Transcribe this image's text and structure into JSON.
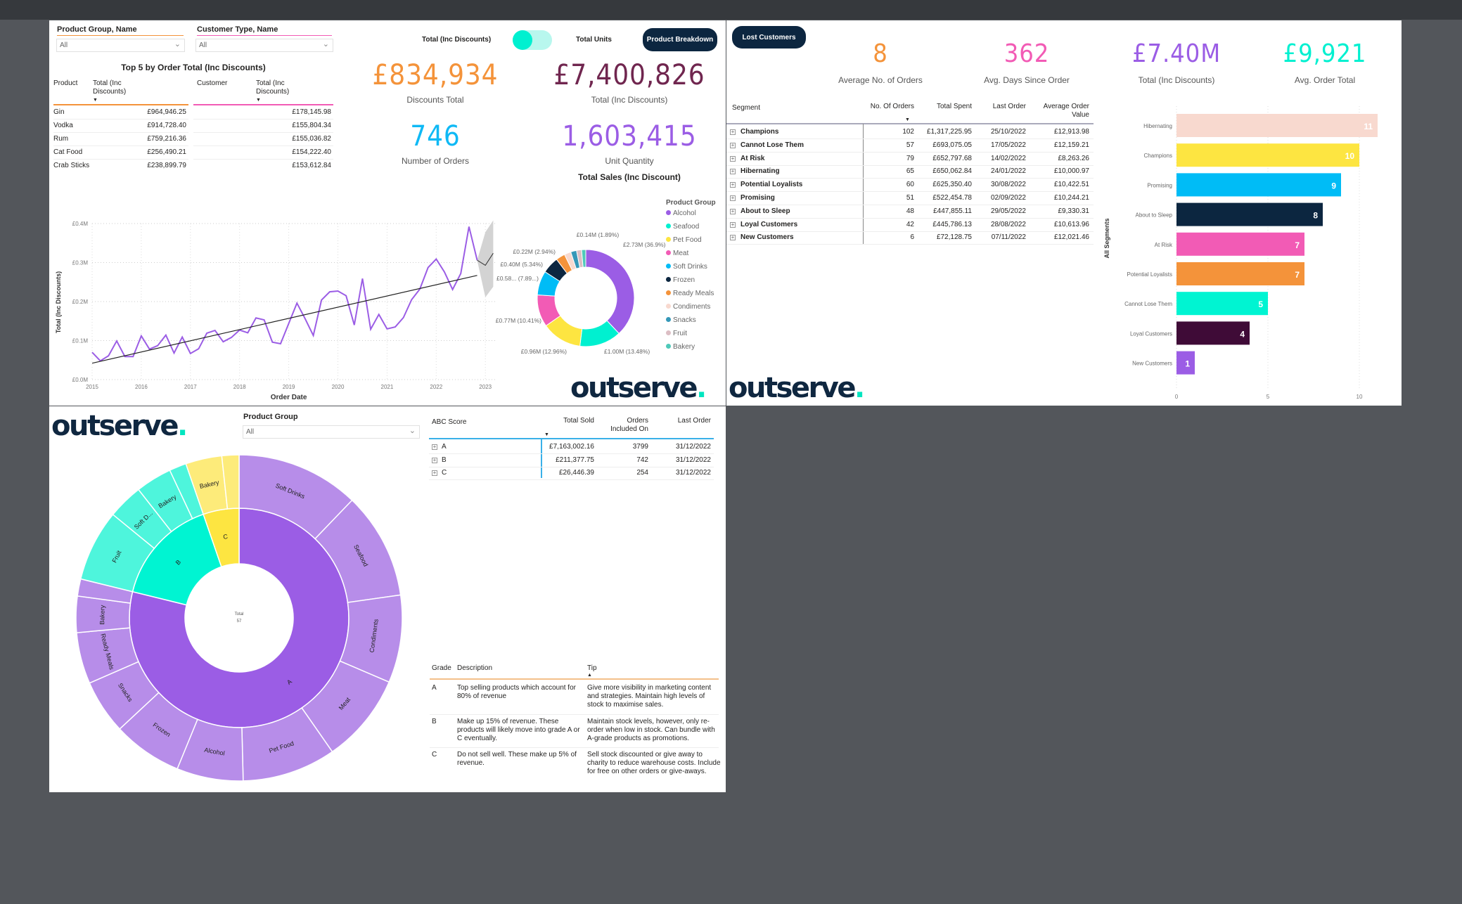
{
  "colors": {
    "orange": "#f4933a",
    "plum": "#70264f",
    "blue": "#0fb9f5",
    "purple": "#9b5de5",
    "pink": "#f25bb5",
    "teal": "#00f0d0",
    "navy": "#0c2640"
  },
  "logo_text": "outserve",
  "sales_panel": {
    "slicers": [
      {
        "label": "Product Group, Name",
        "value": "All"
      },
      {
        "label": "Customer Type, Name",
        "value": "All"
      }
    ],
    "top5": {
      "title": "Top 5 by Order Total (Inc Discounts)",
      "product_headers": [
        "Product",
        "Total (Inc Discounts)"
      ],
      "customer_headers": [
        "Customer",
        "Total (Inc Discounts)"
      ],
      "products": [
        [
          "Gin",
          "£964,946.25"
        ],
        [
          "Vodka",
          "£914,728.40"
        ],
        [
          "Rum",
          "£759,216.36"
        ],
        [
          "Cat Food",
          "£256,490.21"
        ],
        [
          "Crab Sticks",
          "£238,899.79"
        ]
      ],
      "customer_totals": [
        "£178,145.98",
        "£155,804.34",
        "£155,036.82",
        "£154,222.40",
        "£153,612.84"
      ]
    },
    "toggle": {
      "left_label": "Total (Inc Discounts)",
      "right_label": "Total Units",
      "state": "left"
    },
    "product_breakdown_button": "Product Breakdown",
    "kpis": [
      {
        "value": "£834,934",
        "label": "Discounts Total",
        "color": "#f4933a"
      },
      {
        "value": "£7,400,826",
        "label": "Total (Inc Discounts)",
        "color": "#70264f"
      },
      {
        "value": "746",
        "label": "Number of Orders",
        "color": "#0fb9f5"
      },
      {
        "value": "1,603,415",
        "label": "Unit Quantity",
        "color": "#9b5de5"
      }
    ],
    "donut_title": "Total Sales (Inc Discount)"
  },
  "customer_panel": {
    "lost_customers_button": "Lost Customers",
    "kpis": [
      {
        "value": "8",
        "label": "Average No. of Orders",
        "color": "#f4933a"
      },
      {
        "value": "362",
        "label": "Avg. Days Since Order",
        "color": "#f25bb5"
      },
      {
        "value": "£7.40M",
        "label": "Total (Inc Discounts)",
        "color": "#9b5de5"
      },
      {
        "value": "£9,921",
        "label": "Avg. Order Total",
        "color": "#00f0d0"
      }
    ],
    "segment_table": {
      "headers": [
        "Segment",
        "No. Of Orders",
        "Total Spent",
        "Last Order",
        "Average Order Value"
      ],
      "rows": [
        [
          "Champions",
          "102",
          "£1,317,225.95",
          "25/10/2022",
          "£12,913.98"
        ],
        [
          "Cannot Lose Them",
          "57",
          "£693,075.05",
          "17/05/2022",
          "£12,159.21"
        ],
        [
          "At Risk",
          "79",
          "£652,797.68",
          "14/02/2022",
          "£8,263.26"
        ],
        [
          "Hibernating",
          "65",
          "£650,062.84",
          "24/01/2022",
          "£10,000.97"
        ],
        [
          "Potential Loyalists",
          "60",
          "£625,350.40",
          "30/08/2022",
          "£10,422.51"
        ],
        [
          "Promising",
          "51",
          "£522,454.78",
          "02/09/2022",
          "£10,244.21"
        ],
        [
          "About to Sleep",
          "48",
          "£447,855.11",
          "29/05/2022",
          "£9,330.31"
        ],
        [
          "Loyal Customers",
          "42",
          "£445,786.13",
          "28/08/2022",
          "£10,613.96"
        ],
        [
          "New Customers",
          "6",
          "£72,128.75",
          "07/11/2022",
          "£12,021.46"
        ]
      ]
    }
  },
  "abc_panel": {
    "slicer": {
      "label": "Product Group",
      "value": "All"
    },
    "abc_table": {
      "headers": [
        "ABC Score",
        "Total Sold",
        "Orders Included On",
        "Last Order"
      ],
      "rows": [
        [
          "A",
          "£7,163,002.16",
          "3799",
          "31/12/2022"
        ],
        [
          "B",
          "£211,377.75",
          "742",
          "31/12/2022"
        ],
        [
          "C",
          "£26,446.39",
          "254",
          "31/12/2022"
        ]
      ]
    },
    "grade_table": {
      "headers": [
        "Grade",
        "Description",
        "Tip"
      ],
      "rows": [
        [
          "A",
          "Top selling products which account for 80% of revenue",
          "Give more visibility in marketing content and strategies. Maintain high levels of stock to maximise sales."
        ],
        [
          "B",
          "Make up 15% of revenue. These products will likely move into grade A or C eventually.",
          "Maintain stock levels, however, only re-order when low in stock. Can bundle with A-grade products as promotions."
        ],
        [
          "C",
          "Do not sell well. These make up 5% of revenue.",
          "Sell stock discounted or give away to charity to reduce warehouse costs. Include for free on other orders or give-aways."
        ]
      ]
    }
  },
  "chart_data": [
    {
      "type": "line",
      "xlabel": "Order Date",
      "ylabel": "Total (Inc Discounts)",
      "x_ticks": [
        "2015",
        "2016",
        "2017",
        "2018",
        "2019",
        "2020",
        "2021",
        "2022",
        "2023"
      ],
      "y_ticks": [
        "£0.0M",
        "£0.1M",
        "£0.2M",
        "£0.3M",
        "£0.4M"
      ],
      "ylim": [
        0,
        0.4
      ],
      "y_unit": "£M",
      "grid": true,
      "x_step": "bi-monthly from 2015",
      "values": [
        0.07,
        0.048,
        0.061,
        0.099,
        0.059,
        0.059,
        0.112,
        0.078,
        0.087,
        0.114,
        0.068,
        0.109,
        0.067,
        0.079,
        0.119,
        0.126,
        0.097,
        0.108,
        0.127,
        0.12,
        0.158,
        0.153,
        0.096,
        0.092,
        0.144,
        0.196,
        0.156,
        0.113,
        0.204,
        0.225,
        0.227,
        0.215,
        0.14,
        0.259,
        0.129,
        0.167,
        0.13,
        0.135,
        0.159,
        0.205,
        0.232,
        0.287,
        0.309,
        0.276,
        0.231,
        0.272,
        0.392,
        0.306
      ],
      "trend": {
        "start": 0.042,
        "end": 0.267
      },
      "forecast": {
        "values": [
          0.306,
          0.293,
          0.324
        ],
        "upper": [
          0.306,
          0.378,
          0.408
        ],
        "lower": [
          0.306,
          0.211,
          0.238
        ]
      },
      "line_color": "#9b5de5"
    },
    {
      "type": "pie",
      "style": "donut",
      "legend_title": "Product Group",
      "legend": "right",
      "slices": [
        {
          "name": "Alcohol",
          "value": 2.73,
          "label": "£2.73M (36.9%)",
          "color": "#9b5de5"
        },
        {
          "name": "Seafood",
          "value": 1.0,
          "label": "£1.00M (13.48%)",
          "color": "#00f0d0"
        },
        {
          "name": "Pet Food",
          "value": 0.96,
          "label": "£0.96M (12.96%)",
          "color": "#fde541"
        },
        {
          "name": "Meat",
          "value": 0.77,
          "label": "£0.77M (10.41%)",
          "color": "#f25bb5"
        },
        {
          "name": "Soft Drinks",
          "value": 0.58,
          "label": "£0.58... (7.89...)",
          "color": "#00bcf6"
        },
        {
          "name": "Frozen",
          "value": 0.4,
          "label": "£0.40M (5.34%)",
          "color": "#0c2640"
        },
        {
          "name": "Ready Meals",
          "value": 0.22,
          "label": "£0.22M (2.94%)",
          "color": "#f4933a"
        },
        {
          "name": "Condiments",
          "value": 0.16,
          "label": "",
          "color": "#f8d9cf"
        },
        {
          "name": "Snacks",
          "value": 0.14,
          "label": "£0.14M (1.89%)",
          "color": "#3598b8"
        },
        {
          "name": "Fruit",
          "value": 0.12,
          "label": "",
          "color": "#dcbec4"
        },
        {
          "name": "Bakery",
          "value": 0.1,
          "label": "",
          "color": "#4fc9b9"
        }
      ]
    },
    {
      "type": "bar",
      "orientation": "horizontal",
      "ylabel": "All Segments",
      "x_ticks": [
        "0",
        "5",
        "10"
      ],
      "xlim": [
        0,
        11
      ],
      "categories": [
        "Hibernating",
        "Champions",
        "Promising",
        "About to Sleep",
        "At Risk",
        "Potential Loyalists",
        "Cannot Lose Them",
        "Loyal Customers",
        "New Customers"
      ],
      "values": [
        11,
        10,
        9,
        8,
        7,
        7,
        5,
        4,
        1
      ],
      "colors": [
        "#f8d9cf",
        "#fde541",
        "#00bcf6",
        "#0c2640",
        "#f25bb5",
        "#f4933a",
        "#00f4d2",
        "#3f0b37",
        "#9b5de5"
      ]
    },
    {
      "type": "sunburst",
      "center_label": "Total",
      "center_value": "57",
      "unit": "percent of total",
      "groups": [
        {
          "name": "A",
          "color": "#9b5de5",
          "child_color": "#b78de9",
          "children": [
            {
              "name": "Soft Drinks",
              "value": 12.2
            },
            {
              "name": "Seafood",
              "value": 10.6
            },
            {
              "name": "Condiments",
              "value": 8.7
            },
            {
              "name": "Meat",
              "value": 8.9
            },
            {
              "name": "Pet Food",
              "value": 9.3
            },
            {
              "name": "Alcohol",
              "value": 6.6
            },
            {
              "name": "Frozen",
              "value": 6.9
            },
            {
              "name": "Snacks",
              "value": 5.4
            },
            {
              "name": "Ready Meals",
              "value": 5.1
            },
            {
              "name": "Bakery",
              "value": 3.6
            },
            {
              "name": "",
              "value": 1.7
            }
          ]
        },
        {
          "name": "B",
          "color": "#00f4d2",
          "child_color": "#4ef5dc",
          "children": [
            {
              "name": "Fruit",
              "value": 7.1
            },
            {
              "name": "Soft D...",
              "value": 3.5
            },
            {
              "name": "Bakery",
              "value": 3.6
            },
            {
              "name": "",
              "value": 1.7
            }
          ]
        },
        {
          "name": "C",
          "color": "#fde541",
          "child_color": "#fdeb7a",
          "children": [
            {
              "name": "Bakery",
              "value": 3.6
            },
            {
              "name": "",
              "value": 1.7
            }
          ]
        }
      ]
    }
  ]
}
